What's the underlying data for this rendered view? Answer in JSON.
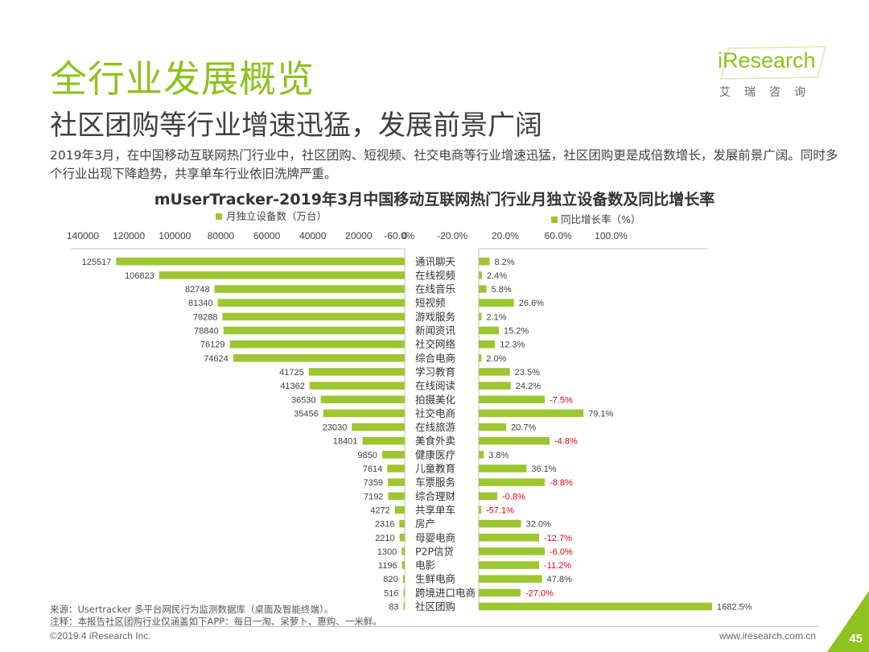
{
  "header": {
    "title": "全行业发展概览",
    "subtitle": "社区团购等行业增速迅猛，发展前景广阔",
    "description": "2019年3月，在中国移动互联网热门行业中，社区团购、短视频、社交电商等行业增速迅猛，社区团购更是成倍数增长，发展前景广阔。同时多个行业出现下降趋势，共享单车行业依旧洗牌严重。"
  },
  "logo": {
    "brand": "iResearch",
    "cn": "艾瑞咨询"
  },
  "colors": {
    "bar": "#9dc630",
    "negative": "#e60012",
    "title": "#8dc21f",
    "text": "#404040"
  },
  "chart_data": {
    "type": "bar",
    "title": "mUserTracker-2019年3月中国移动互联网热门行业月独立设备数及同比增长率",
    "categories": [
      "通讯聊天",
      "在线视频",
      "在线音乐",
      "短视频",
      "游戏服务",
      "新闻资讯",
      "社交网络",
      "综合电商",
      "学习教育",
      "在线阅读",
      "拍摄美化",
      "社交电商",
      "在线旅游",
      "美食外卖",
      "健康医疗",
      "儿童教育",
      "车票服务",
      "综合理财",
      "共享单车",
      "房产",
      "母婴电商",
      "P2P信贷",
      "电影",
      "生鲜电商",
      "跨境进口电商",
      "社区团购"
    ],
    "series": [
      {
        "name": "月独立设备数（万台）",
        "values": [
          125517,
          106823,
          82748,
          81340,
          79288,
          78840,
          76129,
          74624,
          41725,
          41362,
          36530,
          35456,
          23030,
          18401,
          9850,
          7614,
          7359,
          7192,
          4272,
          2316,
          2210,
          1300,
          1196,
          820,
          516,
          83
        ],
        "labels": [
          "125517",
          "106823",
          "82748",
          "81340",
          "79288",
          "78840",
          "76129",
          "74624",
          "41725",
          "41362",
          "36530",
          "35456",
          "23030",
          "18401",
          "9850",
          "7614",
          "7359",
          "7192",
          "4272",
          "2316",
          "2210",
          "1300",
          "1196",
          "820",
          "516",
          "83"
        ]
      },
      {
        "name": "同比增长率（%）",
        "values": [
          8.2,
          2.4,
          5.8,
          26.6,
          2.1,
          15.2,
          12.3,
          2.0,
          23.5,
          24.2,
          -7.5,
          79.1,
          20.7,
          -4.8,
          3.8,
          36.1,
          -8.8,
          -0.8,
          -57.1,
          32.0,
          -12.7,
          -6.0,
          -11.2,
          47.8,
          -27.0,
          1682.5
        ],
        "labels": [
          "8.2%",
          "2.4%",
          "5.8%",
          "26.6%",
          "2.1%",
          "15.2%",
          "12.3%",
          "2.0%",
          "23.5%",
          "24.2%",
          "-7.5%",
          "79.1%",
          "20.7%",
          "-4.8%",
          "3.8%",
          "36.1%",
          "-8.8%",
          "-0.8%",
          "-57.1%",
          "32.0%",
          "-12.7%",
          "-6.0%",
          "-11.2%",
          "47.8%",
          "-27.0%",
          "1682.5%"
        ]
      }
    ],
    "left_axis": {
      "ticks": [
        140000,
        120000,
        100000,
        80000,
        60000,
        40000,
        20000,
        0
      ],
      "tick_labels": [
        "140000",
        "120000",
        "100000",
        "80000",
        "60000",
        "40000",
        "20000",
        "0"
      ],
      "range": [
        0,
        140000
      ],
      "legend": "月独立设备数（万台）"
    },
    "right_axis": {
      "ticks": [
        -60,
        -20,
        20,
        60,
        100
      ],
      "tick_labels": [
        "-60.0%",
        "-20.0%",
        "20.0%",
        "60.0%",
        "100.0%"
      ],
      "range": [
        -60,
        100
      ],
      "legend": "同比增长率（%）",
      "note": "axis is visually compressed/broken: small values drawn near zero; 1682.5% bar extends to the far right"
    }
  },
  "footer": {
    "source": "来源：Usertracker 多平台网民行为监测数据库（桌面及智能终端）。",
    "note": "注释：本报告社区团购行业仅涵盖如下APP：每日一淘、呆萝卜、惠购、一米鲜。",
    "copyright": "©2019.4 iResearch Inc.",
    "url": "www.iresearch.com.cn",
    "page": "45"
  }
}
